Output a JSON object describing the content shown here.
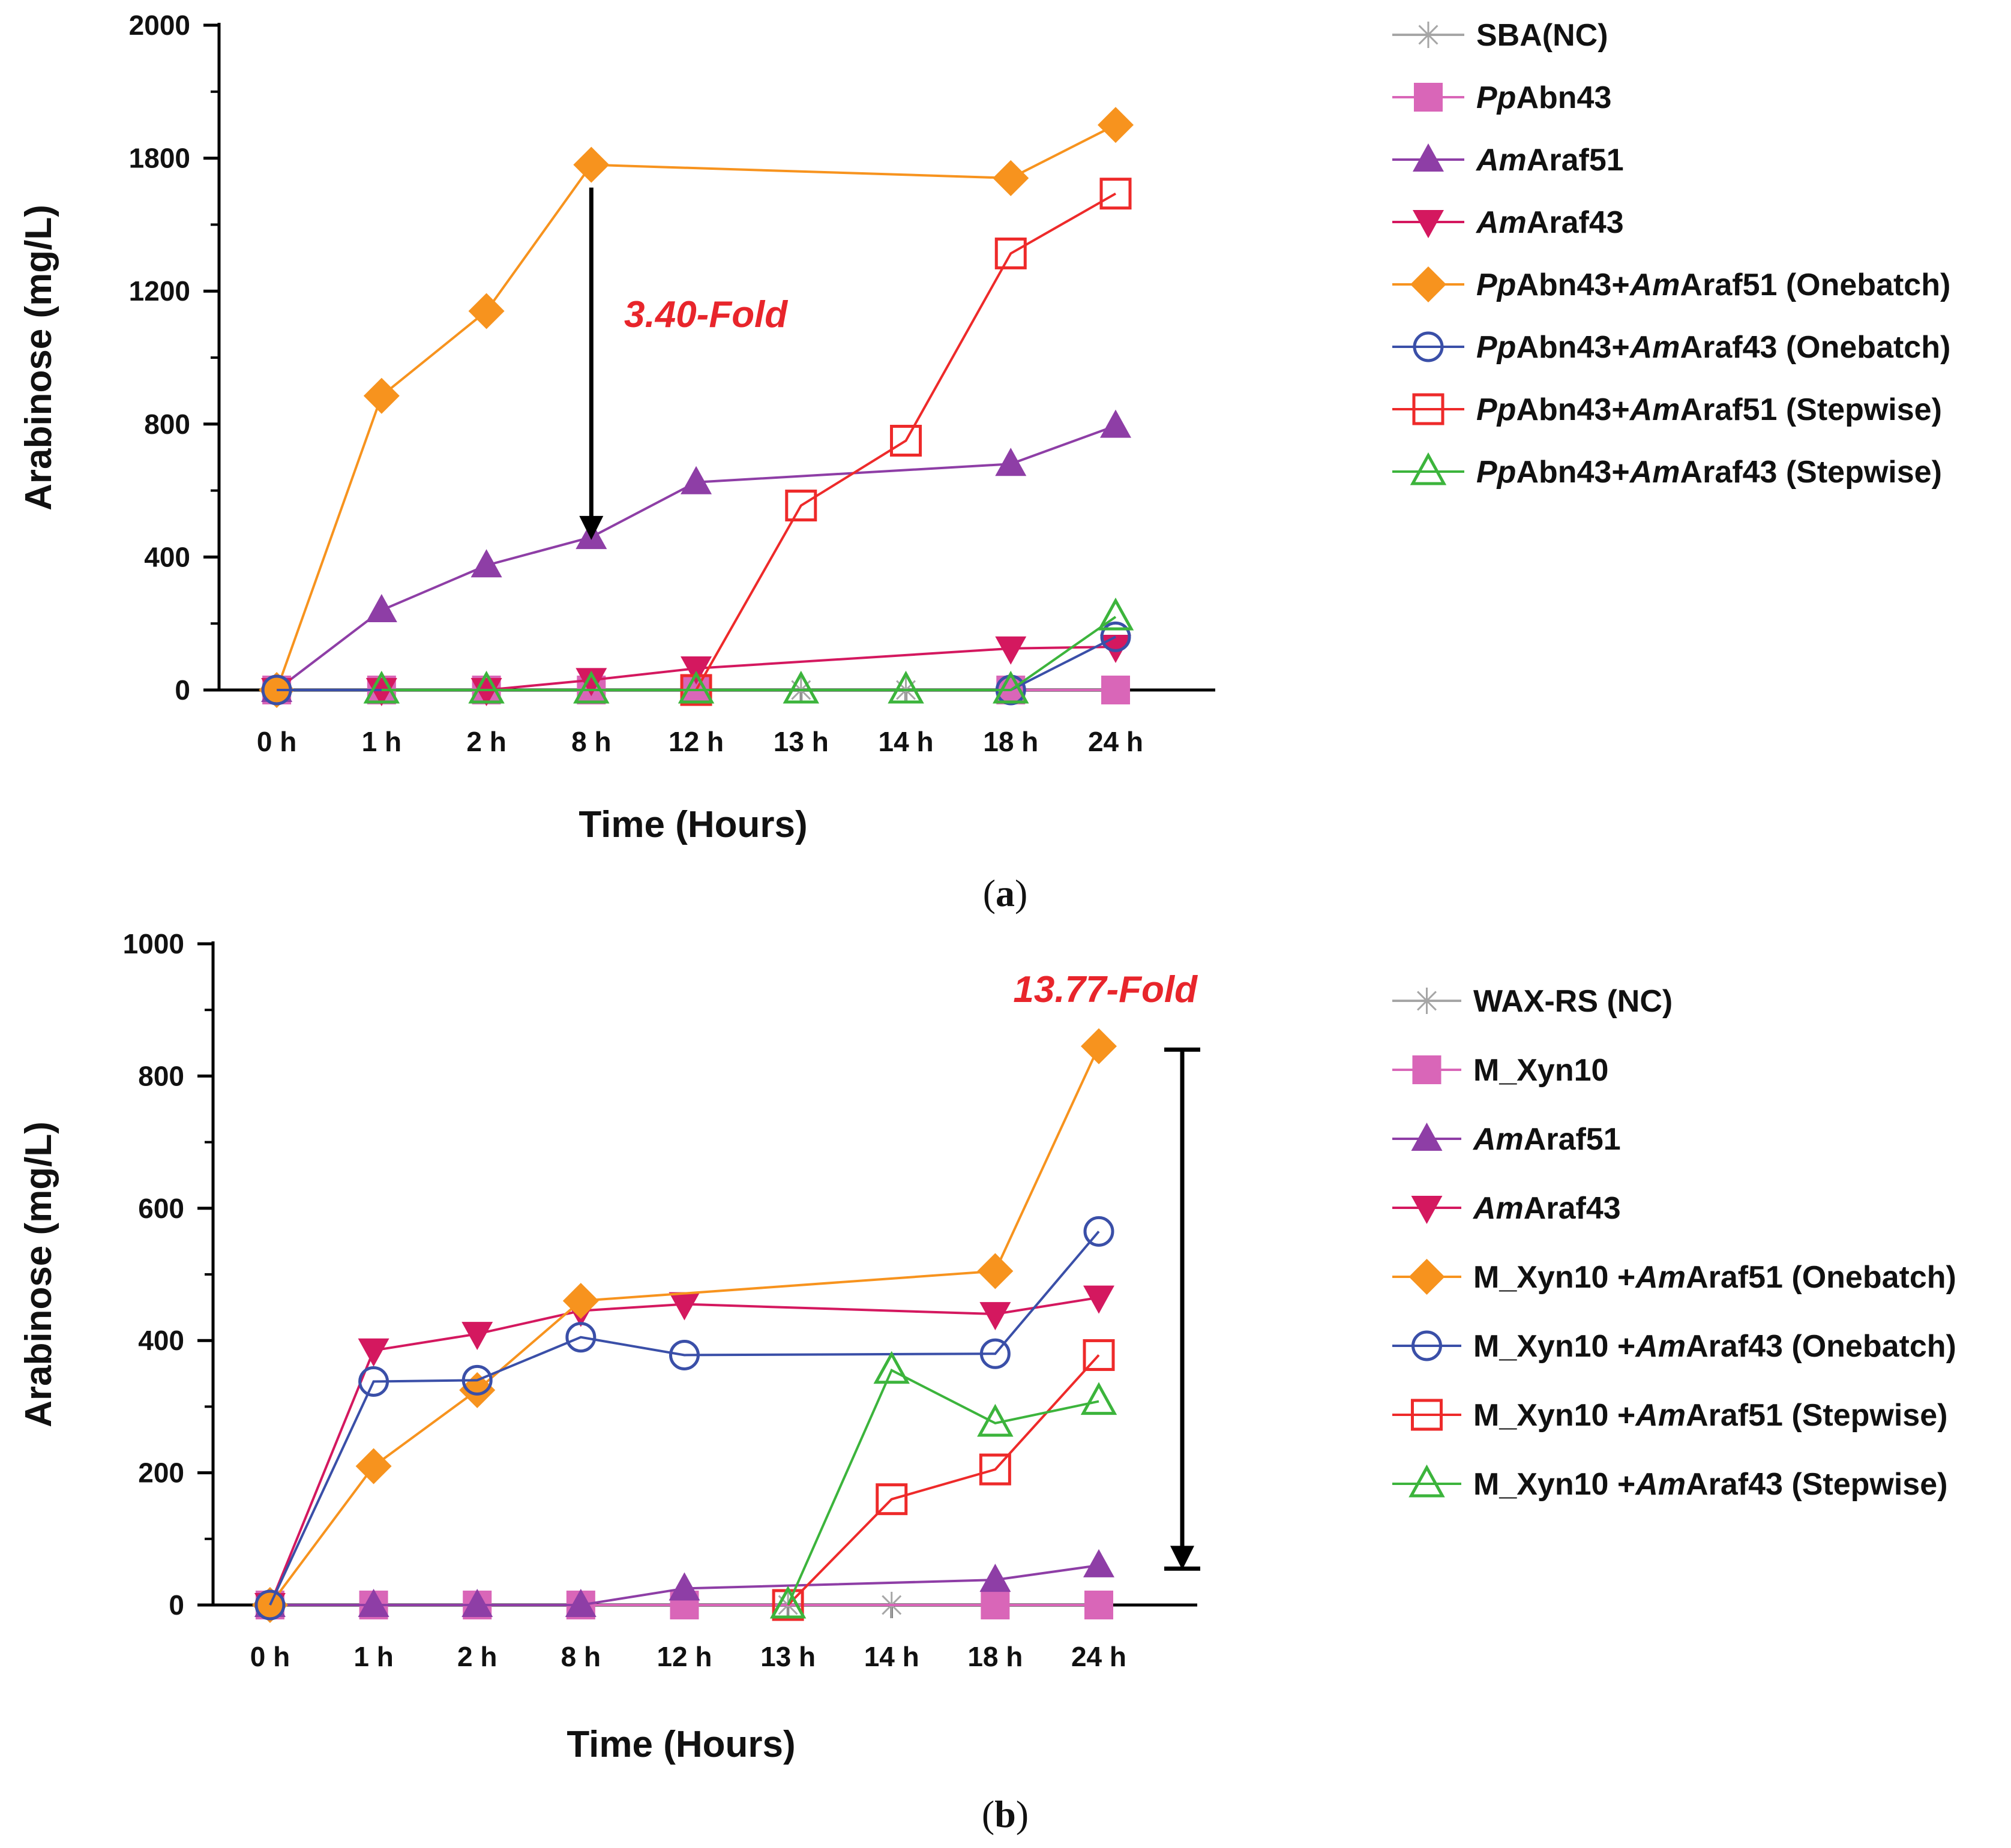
{
  "chart_data": [
    {
      "panel": "(a)",
      "panel_label": {
        "open": "(",
        "letter": "a",
        "close": ")"
      },
      "type": "line",
      "xlabel": "Time (Hours)",
      "ylabel": "Arabinose (mg/L)",
      "categories": [
        "0 h",
        "1 h",
        "2 h",
        "8 h",
        "12 h",
        "13 h",
        "14 h",
        "18 h",
        "24 h"
      ],
      "ylim": [
        0,
        2000
      ],
      "y_axis_breakpoints": [
        [
          0,
          0
        ],
        [
          400,
          0.2
        ],
        [
          800,
          0.4
        ],
        [
          1200,
          0.6
        ],
        [
          1800,
          0.8
        ],
        [
          2000,
          1.0
        ]
      ],
      "yticks": [
        0,
        400,
        800,
        1200,
        1800,
        2000
      ],
      "annotation": {
        "text": "3.40-Fold",
        "color": "#e8252b",
        "arrow_category": "8 h",
        "arrow_from": 1770,
        "arrow_to": 455
      },
      "series": [
        {
          "name": [
            {
              "t": "SBA(NC)",
              "i": false
            }
          ],
          "color": "#a6a6a6",
          "marker": "asterisk",
          "values": [
            0,
            0,
            0,
            0,
            0,
            0,
            0,
            0,
            0
          ]
        },
        {
          "name": [
            {
              "t": "Pp",
              "i": true
            },
            {
              "t": "Abn43",
              "i": false
            }
          ],
          "color": "#d966b8",
          "marker": "square-filled",
          "values": [
            0,
            0,
            0,
            0,
            0,
            null,
            null,
            0,
            0
          ]
        },
        {
          "name": [
            {
              "t": "Am",
              "i": true
            },
            {
              "t": "Araf51",
              "i": false
            }
          ],
          "color": "#8e3ea6",
          "marker": "triangle-up-filled",
          "values": [
            0,
            240,
            375,
            460,
            625,
            null,
            null,
            680,
            795
          ]
        },
        {
          "name": [
            {
              "t": "Am",
              "i": true
            },
            {
              "t": "Araf43",
              "i": false
            }
          ],
          "color": "#d4185f",
          "marker": "triangle-down-filled",
          "values": [
            0,
            0,
            0,
            30,
            65,
            null,
            null,
            125,
            130
          ]
        },
        {
          "name": [
            {
              "t": "Pp",
              "i": true
            },
            {
              "t": "Abn43+",
              "i": false
            },
            {
              "t": "Am",
              "i": true
            },
            {
              "t": "Araf51 (Onebatch)",
              "i": false
            }
          ],
          "color": "#f7931e",
          "marker": "diamond-filled",
          "values": [
            0,
            885,
            1140,
            1770,
            null,
            null,
            null,
            1710,
            1850
          ]
        },
        {
          "name": [
            {
              "t": "Pp",
              "i": true
            },
            {
              "t": "Abn43+",
              "i": false
            },
            {
              "t": "Am",
              "i": true
            },
            {
              "t": "Araf43 (Onebatch)",
              "i": false
            }
          ],
          "color": "#3a4fa8",
          "marker": "circle-open",
          "values": [
            0,
            null,
            null,
            null,
            null,
            null,
            null,
            0,
            160
          ]
        },
        {
          "name": [
            {
              "t": "Pp",
              "i": true
            },
            {
              "t": "Abn43+",
              "i": false
            },
            {
              "t": "Am",
              "i": true
            },
            {
              "t": "Araf51 (Stepwise)",
              "i": false
            }
          ],
          "color": "#ee2a2a",
          "marker": "square-open",
          "values": [
            null,
            null,
            null,
            null,
            0,
            555,
            750,
            1370,
            1640
          ]
        },
        {
          "name": [
            {
              "t": "Pp",
              "i": true
            },
            {
              "t": "Abn43+",
              "i": false
            },
            {
              "t": "Am",
              "i": true
            },
            {
              "t": "Araf43 (Stepwise)",
              "i": false
            }
          ],
          "color": "#3cb43c",
          "marker": "triangle-up-open",
          "values": [
            null,
            0,
            0,
            0,
            0,
            0,
            0,
            0,
            220
          ]
        }
      ]
    },
    {
      "panel": "(b)",
      "panel_label": {
        "open": "(",
        "letter": "b",
        "close": ")"
      },
      "type": "line",
      "xlabel": "Time (Hours)",
      "ylabel": "Arabinose (mg/L)",
      "categories": [
        "0 h",
        "1 h",
        "2 h",
        "8 h",
        "12 h",
        "13 h",
        "14 h",
        "18 h",
        "24 h"
      ],
      "ylim": [
        0,
        1000
      ],
      "y_axis_breakpoints": [
        [
          0,
          0
        ],
        [
          1000,
          1.0
        ]
      ],
      "yticks": [
        0,
        200,
        400,
        600,
        800,
        1000
      ],
      "annotation": {
        "text": "13.77-Fold",
        "color": "#e8252b",
        "arrow_category": "24 h",
        "arrow_from": 840,
        "arrow_to": 55
      },
      "series": [
        {
          "name": [
            {
              "t": "WAX-RS (NC)",
              "i": false
            }
          ],
          "color": "#a6a6a6",
          "marker": "asterisk",
          "values": [
            0,
            0,
            0,
            0,
            0,
            0,
            0,
            0,
            0
          ]
        },
        {
          "name": [
            {
              "t": "M_Xyn10",
              "i": false
            }
          ],
          "color": "#d966b8",
          "marker": "square-filled",
          "values": [
            0,
            0,
            0,
            0,
            0,
            null,
            null,
            0,
            0
          ]
        },
        {
          "name": [
            {
              "t": "Am",
              "i": true
            },
            {
              "t": "Araf51",
              "i": false
            }
          ],
          "color": "#8e3ea6",
          "marker": "triangle-up-filled",
          "values": [
            0,
            0,
            0,
            0,
            25,
            null,
            null,
            38,
            60
          ]
        },
        {
          "name": [
            {
              "t": "Am",
              "i": true
            },
            {
              "t": "Araf43",
              "i": false
            }
          ],
          "color": "#d4185f",
          "marker": "triangle-down-filled",
          "values": [
            0,
            385,
            410,
            445,
            455,
            null,
            null,
            440,
            465
          ]
        },
        {
          "name": [
            {
              "t": "M_Xyn10 +",
              "i": false
            },
            {
              "t": "Am",
              "i": true
            },
            {
              "t": "Araf51 (Onebatch)",
              "i": false
            }
          ],
          "color": "#f7931e",
          "marker": "diamond-filled",
          "values": [
            0,
            210,
            325,
            460,
            null,
            null,
            null,
            505,
            845
          ]
        },
        {
          "name": [
            {
              "t": "M_Xyn10 +",
              "i": false
            },
            {
              "t": "Am",
              "i": true
            },
            {
              "t": "Araf43 (Onebatch)",
              "i": false
            }
          ],
          "color": "#3a4fa8",
          "marker": "circle-open",
          "values": [
            0,
            338,
            340,
            405,
            378,
            null,
            null,
            380,
            565
          ]
        },
        {
          "name": [
            {
              "t": "M_Xyn10 +",
              "i": false
            },
            {
              "t": "Am",
              "i": true
            },
            {
              "t": "Araf51 (Stepwise)",
              "i": false
            }
          ],
          "color": "#ee2a2a",
          "marker": "square-open",
          "values": [
            null,
            null,
            null,
            null,
            null,
            0,
            160,
            205,
            378
          ]
        },
        {
          "name": [
            {
              "t": "M_Xyn10 +",
              "i": false
            },
            {
              "t": "Am",
              "i": true
            },
            {
              "t": "Araf43 (Stepwise)",
              "i": false
            }
          ],
          "color": "#3cb43c",
          "marker": "triangle-up-open",
          "values": [
            null,
            null,
            null,
            null,
            null,
            0,
            355,
            275,
            308
          ]
        }
      ]
    }
  ]
}
